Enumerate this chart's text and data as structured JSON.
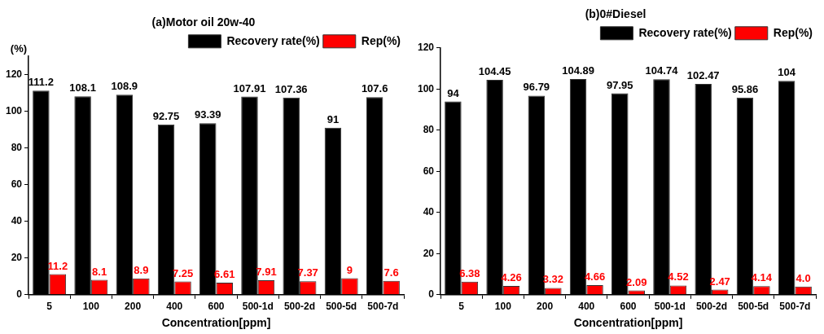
{
  "chart_data": [
    {
      "type": "bar",
      "title": "(a)Motor oil 20w-40",
      "xlabel": "Concentration[ppm]",
      "ylabel": "(%)",
      "categories": [
        "5",
        "100",
        "200",
        "400",
        "600",
        "500-1d",
        "500-2d",
        "500-5d",
        "500-7d"
      ],
      "series": [
        {
          "name": "Recovery rate(%)",
          "color": "#000000",
          "values": [
            111.2,
            108.1,
            108.9,
            92.75,
            93.39,
            107.91,
            107.36,
            91,
            107.6
          ]
        },
        {
          "name": "Rep(%)",
          "color": "#ff0000",
          "values": [
            11.2,
            8.1,
            8.9,
            7.25,
            6.61,
            7.91,
            7.37,
            9,
            7.6
          ]
        }
      ],
      "data_labels": true,
      "ylim": [
        0,
        130
      ],
      "yticks": [
        0,
        20,
        40,
        60,
        80,
        100,
        120
      ],
      "grid": false,
      "legend": "top right"
    },
    {
      "type": "bar",
      "title": "(b)0#Diesel",
      "xlabel": "Concentration[ppm]",
      "categories": [
        "5",
        "100",
        "200",
        "400",
        "600",
        "500-1d",
        "500-2d",
        "500-5d",
        "500-7d"
      ],
      "series": [
        {
          "name": "Recovery rate(%)",
          "color": "#000000",
          "values": [
            94,
            104.45,
            96.79,
            104.89,
            97.95,
            104.74,
            102.47,
            95.86,
            104
          ],
          "value_labels": [
            "94",
            "104.45",
            "96.79",
            "104.89",
            "97.95",
            "104.74",
            "102.47",
            "95.86",
            "104"
          ]
        },
        {
          "name": "Rep(%)",
          "color": "#ff0000",
          "values": [
            6.38,
            4.26,
            3.32,
            4.66,
            2.09,
            4.52,
            2.47,
            4.14,
            4
          ],
          "value_labels": [
            "6.38",
            "4.26",
            "3.32",
            "4.66",
            "2.09",
            "4.52",
            "2.47",
            "4.14",
            "4.0"
          ]
        }
      ],
      "ylim": [
        0,
        120
      ],
      "yticks": [
        0,
        20,
        40,
        60,
        80,
        100,
        120
      ],
      "grid": false,
      "legend": "top right"
    }
  ]
}
